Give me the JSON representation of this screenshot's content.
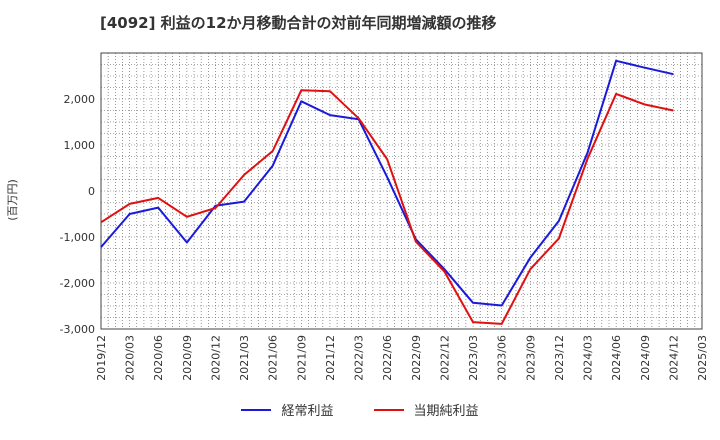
{
  "chart_data": {
    "type": "line",
    "title": "[4092]  利益の12か月移動合計の対前年同期増減額の推移",
    "ylabel": "(百万円)",
    "xlabel": "",
    "ylim": [
      -3000,
      3000
    ],
    "yticks": [
      -3000,
      -2000,
      -1000,
      0,
      1000,
      2000
    ],
    "ytick_labels": [
      "-3,000",
      "-2,000",
      "-1,000",
      "0",
      "1,000",
      "2,000"
    ],
    "categories": [
      "2019/12",
      "2020/03",
      "2020/06",
      "2020/09",
      "2020/12",
      "2021/03",
      "2021/06",
      "2021/09",
      "2021/12",
      "2022/03",
      "2022/06",
      "2022/09",
      "2022/12",
      "2023/03",
      "2023/06",
      "2023/09",
      "2023/12",
      "2024/03",
      "2024/06",
      "2024/09",
      "2024/12",
      "2025/03"
    ],
    "grid": true,
    "legend_position": "bottom",
    "series": [
      {
        "name": "経常利益",
        "color": "#1a1adb",
        "values": [
          -1220,
          -500,
          -360,
          -1120,
          -320,
          -230,
          550,
          1950,
          1650,
          1560,
          300,
          -1050,
          -1700,
          -2430,
          -2490,
          -1450,
          -650,
          830,
          2830,
          2680,
          2540,
          null
        ]
      },
      {
        "name": "当期純利益",
        "color": "#e01010",
        "values": [
          -680,
          -280,
          -150,
          -560,
          -370,
          350,
          870,
          2190,
          2170,
          1580,
          690,
          -1100,
          -1750,
          -2850,
          -2890,
          -1700,
          -1030,
          700,
          2110,
          1880,
          1750,
          null
        ]
      }
    ]
  }
}
